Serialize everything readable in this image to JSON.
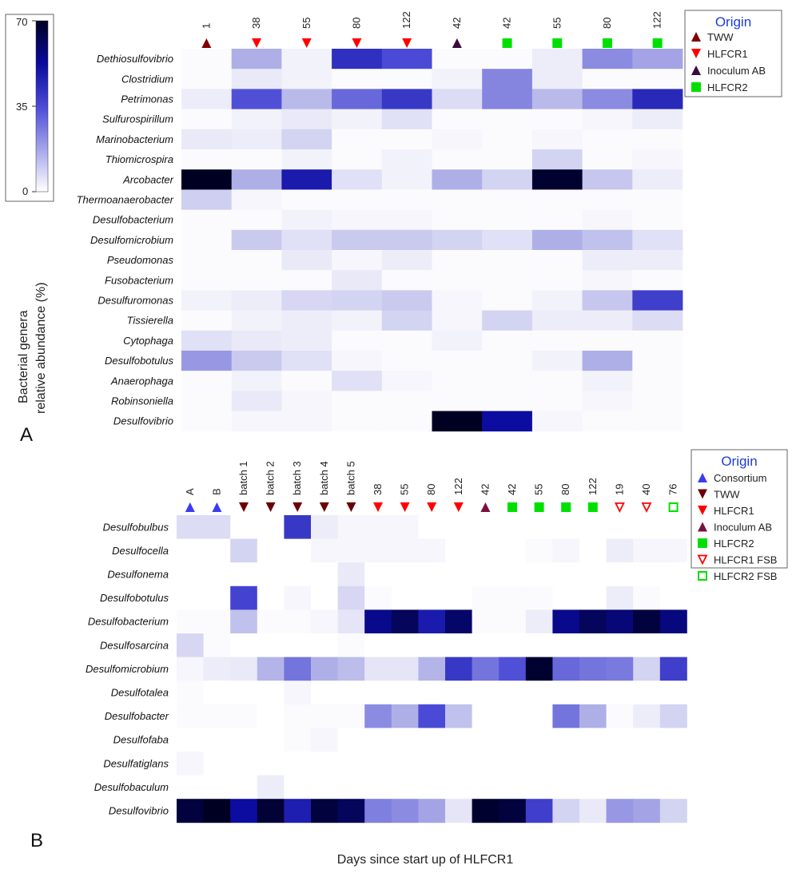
{
  "y_axis_title_line1": "Bacterial genera",
  "y_axis_title_line2": "relative abundance (%)",
  "x_axis_title": "Days since start up of HLFCR1",
  "colorbar": {
    "min_label": "0",
    "mid_label": "35",
    "max_label": "70",
    "min": 0,
    "max": 70
  },
  "chart_data": [
    {
      "type": "heatmap",
      "panel_label": "A",
      "title": "",
      "xlabel": "Days since start up of HLFCR1",
      "ylabel": "Bacterial genera relative abundance (%)",
      "value_range": [
        0,
        70
      ],
      "columns": [
        {
          "label": "1",
          "origin": "TWW"
        },
        {
          "label": "38",
          "origin": "HLFCR1"
        },
        {
          "label": "55",
          "origin": "HLFCR1"
        },
        {
          "label": "80",
          "origin": "HLFCR1"
        },
        {
          "label": "122",
          "origin": "HLFCR1"
        },
        {
          "label": "42",
          "origin": "Inoculum AB"
        },
        {
          "label": "42",
          "origin": "HLFCR2"
        },
        {
          "label": "55",
          "origin": "HLFCR2"
        },
        {
          "label": "80",
          "origin": "HLFCR2"
        },
        {
          "label": "122",
          "origin": "HLFCR2"
        }
      ],
      "rows": [
        "Dethiosulfovibrio",
        "Clostridium",
        "Petrimonas",
        "Sulfurospirillum",
        "Marinobacterium",
        "Thiomicrospira",
        "Arcobacter",
        "Thermoanaerobacter",
        "Desulfobacterium",
        "Desulfomicrobium",
        "Pseudomonas",
        "Fusobacterium",
        "Desulfuromonas",
        "Tissierella",
        "Cytophaga",
        "Desulfobotulus",
        "Anaerophaga",
        "Robinsoniella",
        "Desulfovibrio"
      ],
      "values": [
        [
          1,
          18,
          3,
          42,
          35,
          1,
          1,
          4,
          24,
          20
        ],
        [
          1,
          5,
          3,
          1,
          1,
          3,
          25,
          4,
          1,
          1
        ],
        [
          4,
          34,
          16,
          30,
          40,
          8,
          25,
          16,
          24,
          44
        ],
        [
          1,
          3,
          5,
          3,
          7,
          1,
          1,
          1,
          2,
          4
        ],
        [
          5,
          4,
          10,
          1,
          1,
          2,
          1,
          2,
          1,
          1
        ],
        [
          1,
          1,
          3,
          1,
          3,
          1,
          1,
          10,
          1,
          2
        ],
        [
          70,
          18,
          48,
          7,
          3,
          18,
          10,
          68,
          13,
          4
        ],
        [
          11,
          2,
          1,
          1,
          1,
          1,
          1,
          1,
          1,
          1
        ],
        [
          1,
          1,
          3,
          2,
          2,
          1,
          1,
          1,
          2,
          1
        ],
        [
          1,
          12,
          7,
          12,
          12,
          10,
          7,
          18,
          14,
          7
        ],
        [
          1,
          1,
          5,
          2,
          4,
          1,
          1,
          1,
          4,
          4
        ],
        [
          1,
          1,
          1,
          5,
          1,
          1,
          1,
          1,
          2,
          1
        ],
        [
          3,
          4,
          9,
          10,
          12,
          2,
          1,
          3,
          13,
          38
        ],
        [
          1,
          3,
          4,
          3,
          10,
          2,
          10,
          4,
          4,
          8
        ],
        [
          7,
          5,
          4,
          1,
          1,
          3,
          1,
          1,
          1,
          1
        ],
        [
          22,
          12,
          7,
          2,
          1,
          1,
          1,
          3,
          18,
          1
        ],
        [
          1,
          3,
          1,
          7,
          2,
          1,
          1,
          1,
          3,
          1
        ],
        [
          1,
          5,
          2,
          1,
          1,
          1,
          1,
          1,
          2,
          1
        ],
        [
          1,
          2,
          2,
          1,
          1,
          70,
          52,
          2,
          1,
          1
        ]
      ],
      "legend": {
        "title": "Origin",
        "items": [
          {
            "label": "TWW",
            "marker": "triangle-up",
            "color": "#7f0000"
          },
          {
            "label": "HLFCR1",
            "marker": "triangle-down",
            "color": "#ff0000"
          },
          {
            "label": "Inoculum AB",
            "marker": "triangle-up",
            "color": "#3d0a3d"
          },
          {
            "label": "HLFCR2",
            "marker": "square",
            "color": "#00e000"
          }
        ]
      }
    },
    {
      "type": "heatmap",
      "panel_label": "B",
      "title": "",
      "xlabel": "Days since start up of HLFCR1",
      "ylabel": "",
      "value_range": [
        0,
        70
      ],
      "columns": [
        {
          "label": "A",
          "origin": "Consortium"
        },
        {
          "label": "B",
          "origin": "Consortium"
        },
        {
          "label": "batch 1",
          "origin": "TWW"
        },
        {
          "label": "batch 2",
          "origin": "TWW"
        },
        {
          "label": "batch 3",
          "origin": "TWW"
        },
        {
          "label": "batch 4",
          "origin": "TWW"
        },
        {
          "label": "batch 5",
          "origin": "TWW"
        },
        {
          "label": "38",
          "origin": "HLFCR1"
        },
        {
          "label": "55",
          "origin": "HLFCR1"
        },
        {
          "label": "80",
          "origin": "HLFCR1"
        },
        {
          "label": "122",
          "origin": "HLFCR1"
        },
        {
          "label": "42",
          "origin": "Inoculum AB"
        },
        {
          "label": "42",
          "origin": "HLFCR2"
        },
        {
          "label": "55",
          "origin": "HLFCR2"
        },
        {
          "label": "80",
          "origin": "HLFCR2"
        },
        {
          "label": "122",
          "origin": "HLFCR2"
        },
        {
          "label": "19",
          "origin": "HLFCR1 FSB"
        },
        {
          "label": "40",
          "origin": "HLFCR1 FSB"
        },
        {
          "label": "76",
          "origin": "HLFCR2 FSB"
        }
      ],
      "rows": [
        "Desulfobulbus",
        "Desulfocella",
        "Desulfonema",
        "Desulfobotulus",
        "Desulfobacterium",
        "Desulfosarcina",
        "Desulfomicrobium",
        "Desulfotalea",
        "Desulfobacter",
        "Desulfofaba",
        "Desulfatiglans",
        "Desulfobaculum",
        "Desulfovibrio"
      ],
      "values": [
        [
          8,
          8,
          0,
          0,
          40,
          4,
          2,
          2,
          2,
          0,
          0,
          0,
          0,
          0,
          0,
          0,
          0,
          0,
          0
        ],
        [
          0,
          0,
          10,
          0,
          0,
          2,
          2,
          2,
          2,
          2,
          0,
          0,
          0,
          1,
          2,
          0,
          4,
          2,
          2
        ],
        [
          0,
          0,
          0,
          0,
          0,
          0,
          5,
          0,
          0,
          0,
          0,
          0,
          0,
          0,
          0,
          0,
          0,
          0,
          0
        ],
        [
          0,
          0,
          37,
          0,
          2,
          0,
          9,
          1,
          0,
          0,
          0,
          1,
          1,
          1,
          0,
          0,
          4,
          1,
          0
        ],
        [
          1,
          1,
          14,
          1,
          1,
          2,
          6,
          55,
          62,
          48,
          60,
          1,
          1,
          4,
          55,
          62,
          58,
          66,
          57
        ],
        [
          9,
          1,
          0,
          0,
          0,
          0,
          1,
          0,
          0,
          0,
          0,
          0,
          0,
          0,
          0,
          0,
          0,
          0,
          0
        ],
        [
          2,
          4,
          5,
          17,
          28,
          18,
          15,
          6,
          6,
          17,
          40,
          28,
          34,
          68,
          30,
          28,
          27,
          10,
          38
        ],
        [
          1,
          0,
          0,
          0,
          2,
          0,
          0,
          0,
          0,
          0,
          0,
          0,
          0,
          0,
          0,
          0,
          0,
          0,
          0
        ],
        [
          1,
          1,
          1,
          0,
          1,
          1,
          1,
          24,
          18,
          35,
          14,
          0,
          0,
          0,
          28,
          18,
          1,
          4,
          10
        ],
        [
          0,
          0,
          0,
          0,
          1,
          2,
          0,
          0,
          0,
          0,
          0,
          0,
          0,
          0,
          0,
          0,
          0,
          0,
          0
        ],
        [
          2,
          0,
          0,
          0,
          0,
          0,
          0,
          0,
          0,
          0,
          0,
          0,
          0,
          0,
          0,
          0,
          0,
          0,
          0
        ],
        [
          0,
          0,
          0,
          4,
          0,
          0,
          0,
          0,
          0,
          0,
          0,
          0,
          0,
          0,
          0,
          0,
          0,
          0,
          0
        ],
        [
          66,
          70,
          52,
          67,
          47,
          66,
          62,
          26,
          24,
          20,
          6,
          68,
          66,
          38,
          10,
          5,
          22,
          20,
          10
        ]
      ],
      "legend": {
        "title": "Origin",
        "items": [
          {
            "label": "Consortium",
            "marker": "triangle-up",
            "color": "#3b3bf0"
          },
          {
            "label": "TWW",
            "marker": "triangle-down",
            "color": "#6b0000"
          },
          {
            "label": "HLFCR1",
            "marker": "triangle-down",
            "color": "#ff0000"
          },
          {
            "label": "Inoculum AB",
            "marker": "triangle-up",
            "color": "#7a1040"
          },
          {
            "label": "HLFCR2",
            "marker": "square",
            "color": "#00e000"
          },
          {
            "label": "HLFCR1 FSB",
            "marker": "triangle-down-open",
            "color": "#ff0000"
          },
          {
            "label": "HLFCR2 FSB",
            "marker": "square-open",
            "color": "#00e000"
          }
        ]
      }
    }
  ]
}
